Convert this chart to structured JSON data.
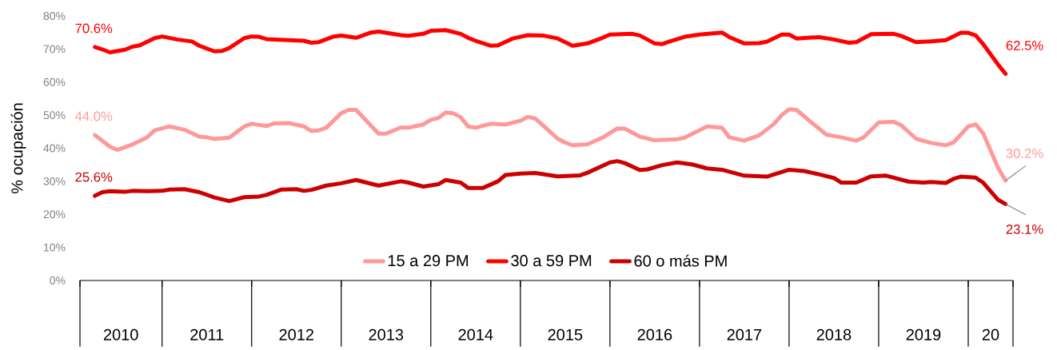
{
  "chart_data": {
    "type": "line",
    "ylabel": "% ocupación",
    "xlim": [
      "2010-02-01",
      "2020-07-01"
    ],
    "xticks": [
      {
        "value": "2010-02-01",
        "label": null
      },
      {
        "value": "2011-01-01",
        "label": null
      },
      {
        "value": "2012-01-01",
        "label": null
      },
      {
        "value": "2013-01-01",
        "label": null
      },
      {
        "value": "2014-01-01",
        "label": null
      },
      {
        "value": "2015-01-01",
        "label": null
      },
      {
        "value": "2016-01-01",
        "label": null
      },
      {
        "value": "2017-01-01",
        "label": null
      },
      {
        "value": "2018-01-01",
        "label": null
      },
      {
        "value": "2019-01-01",
        "label": null
      },
      {
        "value": "2020-01-01",
        "label": null
      },
      {
        "value": "2020-07-01",
        "label": null
      },
      {
        "value": "2010-07-16",
        "label": "2010"
      },
      {
        "value": "2011-07-01",
        "label": "2011"
      },
      {
        "value": "2012-07-01",
        "label": "2012"
      },
      {
        "value": "2013-07-01",
        "label": "2013"
      },
      {
        "value": "2014-07-01",
        "label": "2014"
      },
      {
        "value": "2015-07-01",
        "label": "2015"
      },
      {
        "value": "2016-07-01",
        "label": "2016"
      },
      {
        "value": "2017-07-01",
        "label": "2017"
      },
      {
        "value": "2018-07-01",
        "label": "2018"
      },
      {
        "value": "2019-07-01",
        "label": "2019"
      },
      {
        "value": "2020-04-01",
        "label": "20"
      }
    ],
    "ylim": [
      0,
      80
    ],
    "yticks": [
      {
        "value": 0,
        "label": "0%"
      },
      {
        "value": 10,
        "label": "10%"
      },
      {
        "value": 20,
        "label": "20%"
      },
      {
        "value": 30,
        "label": "30%"
      },
      {
        "value": 40,
        "label": "40%"
      },
      {
        "value": 50,
        "label": "50%"
      },
      {
        "value": 60,
        "label": "60%"
      },
      {
        "value": 70,
        "label": "70%"
      },
      {
        "value": 80,
        "label": "80%"
      }
    ],
    "legend": "bottom",
    "series": [
      {
        "name": "15 a 29 PM",
        "color": "#ff9999",
        "x": [
          "2010-04",
          "2010-06",
          "2010-07",
          "2010-09",
          "2010-11",
          "2010-12",
          "2011-02",
          "2011-04",
          "2011-06",
          "2011-07",
          "2011-08",
          "2011-10",
          "2011-12",
          "2012-01",
          "2012-03",
          "2012-04",
          "2012-06",
          "2012-08",
          "2012-09",
          "2012-10",
          "2012-11",
          "2013-01",
          "2013-02",
          "2013-03",
          "2013-06",
          "2013-07",
          "2013-09",
          "2013-10",
          "2013-12",
          "2014-01",
          "2014-02",
          "2014-03",
          "2014-04",
          "2014-05",
          "2014-06",
          "2014-07",
          "2014-09",
          "2014-11",
          "2015-01",
          "2015-02",
          "2015-03",
          "2015-04",
          "2015-06",
          "2015-07",
          "2015-08",
          "2015-10",
          "2015-12",
          "2016-02",
          "2016-03",
          "2016-05",
          "2016-07",
          "2016-10",
          "2016-11",
          "2017-02",
          "2017-04",
          "2017-05",
          "2017-07",
          "2017-09",
          "2017-11",
          "2017-12",
          "2018-01",
          "2018-02",
          "2018-04",
          "2018-06",
          "2018-08",
          "2018-10",
          "2018-11",
          "2019-01",
          "2019-03",
          "2019-04",
          "2019-06",
          "2019-08",
          "2019-10",
          "2019-11",
          "2020-01",
          "2020-02",
          "2020-03",
          "2020-05",
          "2020-06"
        ],
        "values": [
          44.0,
          40.5,
          39.5,
          41.1,
          43.3,
          45.4,
          46.6,
          45.6,
          43.5,
          43.3,
          42.8,
          43.2,
          46.6,
          47.4,
          46.7,
          47.5,
          47.6,
          46.6,
          45.2,
          45.4,
          46.2,
          50.6,
          51.6,
          51.6,
          44.4,
          44.4,
          46.3,
          46.2,
          47.2,
          48.6,
          49.1,
          50.8,
          50.6,
          49.4,
          46.6,
          46.2,
          47.4,
          47.2,
          48.3,
          49.5,
          49.0,
          47.0,
          42.9,
          41.7,
          40.9,
          41.2,
          43.2,
          46.0,
          45.9,
          43.5,
          42.4,
          42.7,
          43.2,
          46.6,
          46.2,
          43.3,
          42.3,
          43.9,
          47.4,
          50.0,
          51.8,
          51.6,
          47.8,
          44.1,
          43.3,
          42.3,
          43.3,
          47.8,
          48.0,
          47.0,
          42.9,
          41.6,
          40.9,
          41.7,
          46.6,
          47.2,
          44.5,
          34.1,
          30.2
        ]
      },
      {
        "name": "30 a 59 PM",
        "color": "#ff0000",
        "x": [
          "2010-04",
          "2010-05",
          "2010-06",
          "2010-08",
          "2010-09",
          "2010-10",
          "2010-12",
          "2011-01",
          "2011-03",
          "2011-05",
          "2011-06",
          "2011-08",
          "2011-09",
          "2011-10",
          "2011-12",
          "2012-01",
          "2012-02",
          "2012-03",
          "2012-06",
          "2012-08",
          "2012-09",
          "2012-10",
          "2012-12",
          "2013-01",
          "2013-03",
          "2013-05",
          "2013-06",
          "2013-09",
          "2013-10",
          "2013-12",
          "2014-01",
          "2014-03",
          "2014-05",
          "2014-06",
          "2014-07",
          "2014-09",
          "2014-10",
          "2014-12",
          "2015-02",
          "2015-04",
          "2015-06",
          "2015-08",
          "2015-10",
          "2015-12",
          "2016-01",
          "2016-04",
          "2016-05",
          "2016-07",
          "2016-08",
          "2016-09",
          "2016-11",
          "2017-01",
          "2017-04",
          "2017-05",
          "2017-07",
          "2017-09",
          "2017-10",
          "2017-12",
          "2018-01",
          "2018-02",
          "2018-05",
          "2018-07",
          "2018-09",
          "2018-10",
          "2018-12",
          "2019-03",
          "2019-04",
          "2019-06",
          "2019-08",
          "2019-10",
          "2019-12",
          "2020-01",
          "2020-02",
          "2020-03",
          "2020-05",
          "2020-06"
        ],
        "values": [
          70.6,
          69.9,
          69.0,
          69.8,
          70.7,
          71.1,
          73.3,
          73.8,
          72.9,
          72.3,
          71.0,
          69.3,
          69.4,
          70.3,
          73.3,
          73.8,
          73.7,
          73.0,
          72.7,
          72.5,
          71.9,
          72.1,
          73.8,
          74.1,
          73.4,
          75.0,
          75.3,
          74.2,
          74.0,
          74.6,
          75.5,
          75.7,
          74.6,
          73.4,
          72.5,
          71.0,
          71.1,
          73.2,
          74.2,
          74.1,
          73.2,
          71.0,
          71.7,
          73.4,
          74.4,
          74.6,
          74.1,
          71.7,
          71.5,
          72.3,
          73.7,
          74.4,
          75.0,
          73.6,
          71.7,
          71.8,
          72.2,
          74.4,
          74.4,
          73.2,
          73.6,
          72.9,
          71.9,
          72.1,
          74.5,
          74.6,
          74.0,
          72.1,
          72.3,
          72.7,
          74.9,
          74.9,
          74.1,
          71.5,
          65.3,
          62.5
        ]
      },
      {
        "name": "60 o más PM",
        "color": "#cc0000",
        "x": [
          "2010-04",
          "2010-05",
          "2010-06",
          "2010-08",
          "2010-09",
          "2010-11",
          "2011-01",
          "2011-02",
          "2011-04",
          "2011-06",
          "2011-08",
          "2011-10",
          "2011-12",
          "2012-02",
          "2012-03",
          "2012-05",
          "2012-07",
          "2012-08",
          "2012-09",
          "2012-11",
          "2013-01",
          "2013-03",
          "2013-06",
          "2013-09",
          "2013-10",
          "2013-12",
          "2014-02",
          "2014-03",
          "2014-05",
          "2014-06",
          "2014-08",
          "2014-10",
          "2014-11",
          "2015-01",
          "2015-03",
          "2015-06",
          "2015-09",
          "2015-10",
          "2016-01",
          "2016-02",
          "2016-03",
          "2016-05",
          "2016-06",
          "2016-08",
          "2016-10",
          "2016-12",
          "2017-02",
          "2017-04",
          "2017-07",
          "2017-10",
          "2018-01",
          "2018-03",
          "2018-05",
          "2018-07",
          "2018-08",
          "2018-10",
          "2018-12",
          "2019-02",
          "2019-05",
          "2019-07",
          "2019-08",
          "2019-10",
          "2019-11",
          "2019-12",
          "2020-02",
          "2020-03",
          "2020-05",
          "2020-06"
        ],
        "values": [
          25.6,
          26.7,
          27.0,
          26.8,
          27.1,
          27.0,
          27.1,
          27.5,
          27.6,
          26.7,
          25.1,
          24.0,
          25.2,
          25.4,
          25.9,
          27.5,
          27.6,
          27.1,
          27.4,
          28.7,
          29.4,
          30.4,
          28.7,
          30.0,
          29.6,
          28.4,
          29.1,
          30.4,
          29.6,
          28.0,
          28.0,
          30.0,
          31.9,
          32.3,
          32.5,
          31.5,
          31.8,
          32.6,
          35.7,
          36.1,
          35.5,
          33.4,
          33.6,
          34.9,
          35.7,
          35.1,
          33.9,
          33.5,
          31.7,
          31.4,
          33.5,
          33.1,
          32.1,
          31.0,
          29.6,
          29.6,
          31.5,
          31.7,
          29.9,
          29.6,
          29.8,
          29.5,
          30.7,
          31.4,
          31.1,
          29.6,
          24.4,
          23.1
        ]
      }
    ],
    "annotations": [
      {
        "text": "70.6%",
        "x": "2010-04",
        "y": 70.6
      },
      {
        "text": "44.0%",
        "x": "2010-04",
        "y": 44.0
      },
      {
        "text": "25.6%",
        "x": "2010-04",
        "y": 25.6
      },
      {
        "text": "62.5%",
        "x": "2020-06",
        "y": 62.5
      },
      {
        "text": "30.2%",
        "x": "2020-06",
        "y": 30.2
      },
      {
        "text": "23.1%",
        "x": "2020-06",
        "y": 23.1
      }
    ]
  }
}
